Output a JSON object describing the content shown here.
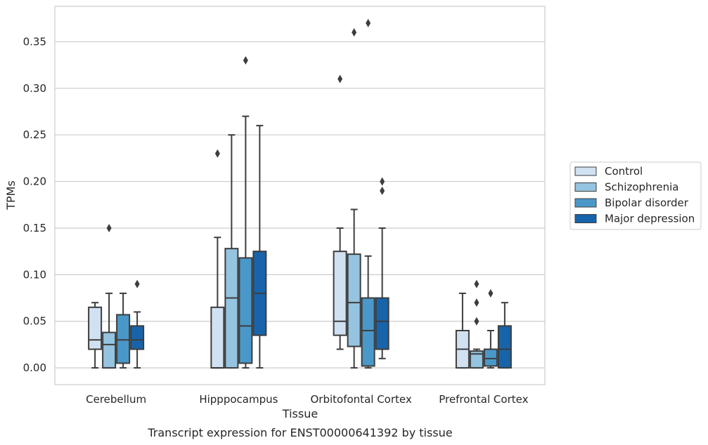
{
  "chart_data": {
    "type": "box",
    "xlabel": "Tissue",
    "ylabel": "TPMs",
    "caption": "Transcript expression for ENST00000641392 by tissue",
    "ylim": [
      -0.018,
      0.388
    ],
    "yticks": [
      "0.00",
      "0.05",
      "0.10",
      "0.15",
      "0.20",
      "0.25",
      "0.30",
      "0.35"
    ],
    "grid": true,
    "legend_position": "right",
    "categories": [
      "Cerebellum",
      "Hipppocampus",
      "Orbitofontal Cortex",
      "Prefrontal Cortex"
    ],
    "series": [
      {
        "name": "Control",
        "color": "#d0e1f2",
        "boxes": [
          {
            "whislo": 0.0,
            "q1": 0.02,
            "med": 0.03,
            "q3": 0.065,
            "whishi": 0.07,
            "fliers": []
          },
          {
            "whislo": 0.0,
            "q1": 0.0,
            "med": 0.0,
            "q3": 0.065,
            "whishi": 0.14,
            "fliers": [
              0.23
            ]
          },
          {
            "whislo": 0.02,
            "q1": 0.035,
            "med": 0.05,
            "q3": 0.125,
            "whishi": 0.15,
            "fliers": [
              0.31
            ]
          },
          {
            "whislo": 0.0,
            "q1": 0.0,
            "med": 0.02,
            "q3": 0.04,
            "whishi": 0.08,
            "fliers": []
          }
        ]
      },
      {
        "name": "Schizophrenia",
        "color": "#94c4df",
        "boxes": [
          {
            "whislo": 0.0,
            "q1": 0.0,
            "med": 0.025,
            "q3": 0.038,
            "whishi": 0.08,
            "fliers": [
              0.15
            ]
          },
          {
            "whislo": 0.0,
            "q1": 0.0,
            "med": 0.075,
            "q3": 0.128,
            "whishi": 0.25,
            "fliers": []
          },
          {
            "whislo": 0.0,
            "q1": 0.023,
            "med": 0.07,
            "q3": 0.122,
            "whishi": 0.17,
            "fliers": [
              0.36
            ]
          },
          {
            "whislo": 0.0,
            "q1": 0.0,
            "med": 0.015,
            "q3": 0.018,
            "whishi": 0.02,
            "fliers": [
              0.05,
              0.07,
              0.09
            ]
          }
        ]
      },
      {
        "name": "Bipolar disorder",
        "color": "#4a98c9",
        "boxes": [
          {
            "whislo": 0.0,
            "q1": 0.005,
            "med": 0.03,
            "q3": 0.057,
            "whishi": 0.08,
            "fliers": []
          },
          {
            "whislo": 0.0,
            "q1": 0.005,
            "med": 0.045,
            "q3": 0.118,
            "whishi": 0.27,
            "fliers": [
              0.33
            ]
          },
          {
            "whislo": 0.0,
            "q1": 0.002,
            "med": 0.04,
            "q3": 0.075,
            "whishi": 0.12,
            "fliers": [
              0.37
            ]
          },
          {
            "whislo": 0.0,
            "q1": 0.002,
            "med": 0.01,
            "q3": 0.02,
            "whishi": 0.04,
            "fliers": [
              0.08
            ]
          }
        ]
      },
      {
        "name": "Major depression",
        "color": "#1764ab",
        "boxes": [
          {
            "whislo": 0.0,
            "q1": 0.02,
            "med": 0.03,
            "q3": 0.045,
            "whishi": 0.06,
            "fliers": [
              0.09
            ]
          },
          {
            "whislo": 0.0,
            "q1": 0.035,
            "med": 0.08,
            "q3": 0.125,
            "whishi": 0.26,
            "fliers": []
          },
          {
            "whislo": 0.01,
            "q1": 0.02,
            "med": 0.05,
            "q3": 0.075,
            "whishi": 0.15,
            "fliers": [
              0.19,
              0.2
            ]
          },
          {
            "whislo": 0.0,
            "q1": 0.0,
            "med": 0.02,
            "q3": 0.045,
            "whishi": 0.07,
            "fliers": []
          }
        ]
      }
    ]
  },
  "colors": {
    "box_edge": "#3d3d3d",
    "grid": "#cccccc",
    "frame": "#cccccc"
  }
}
